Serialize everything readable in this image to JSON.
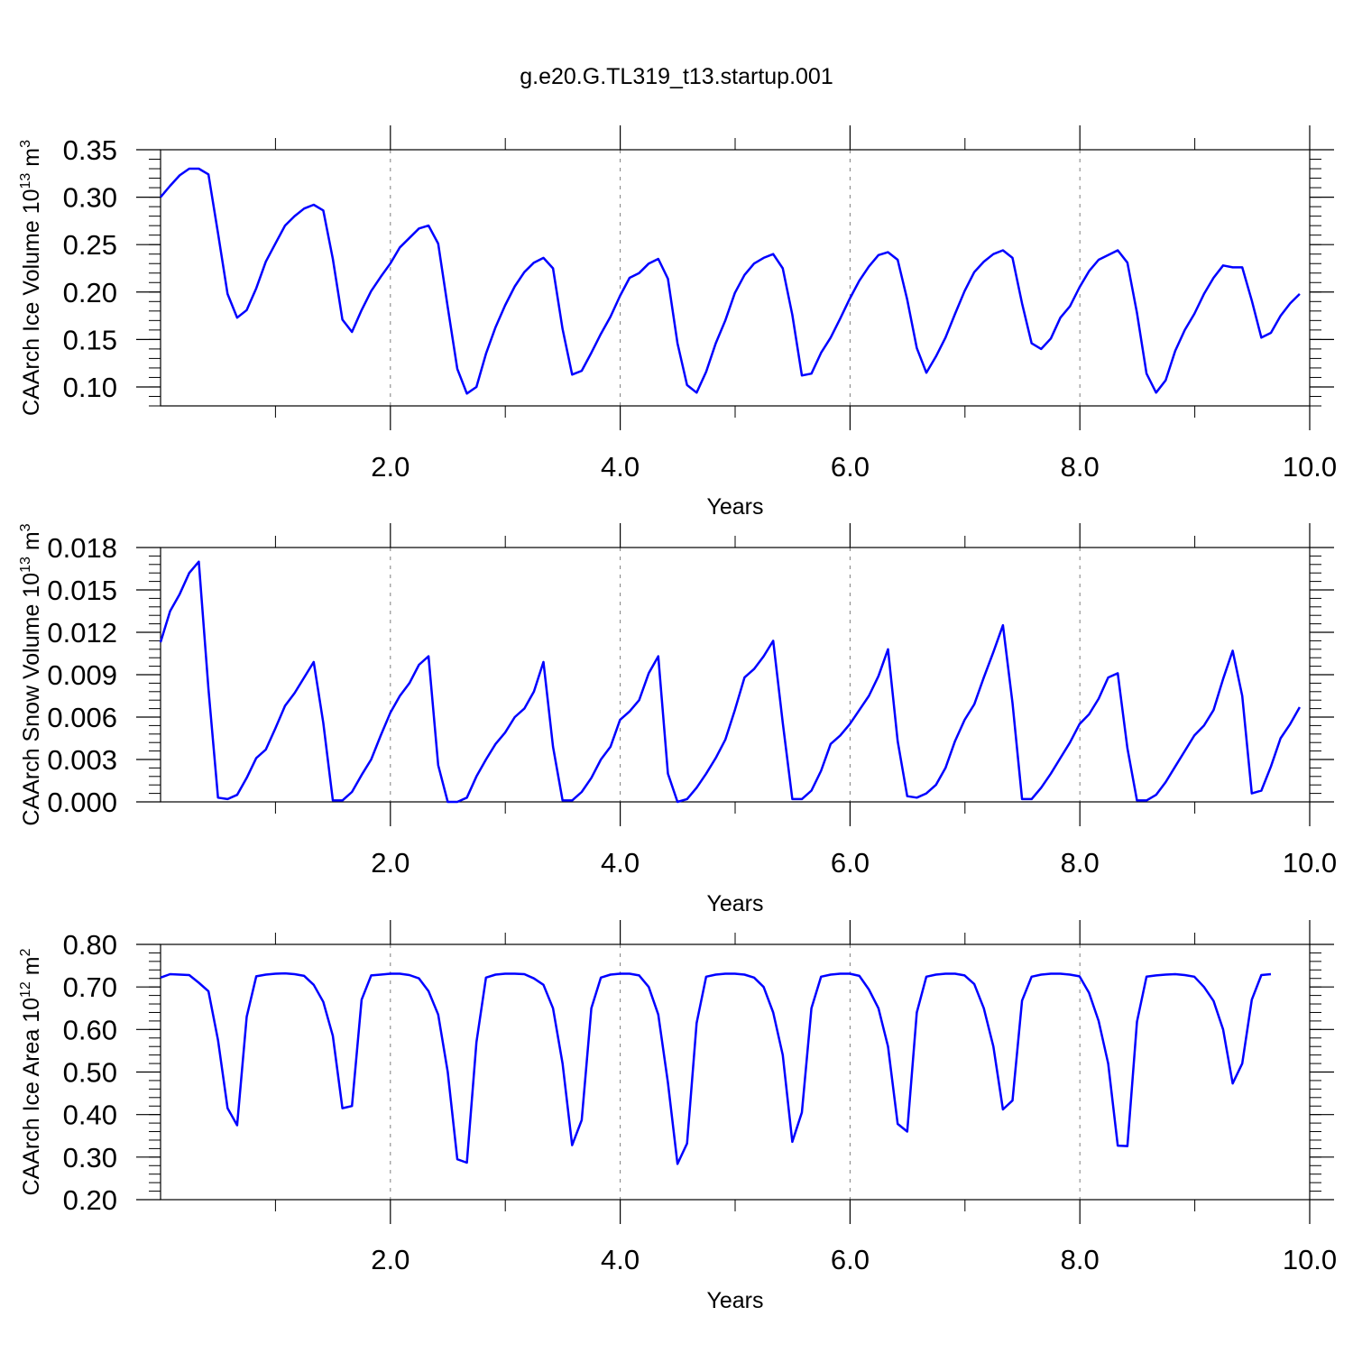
{
  "title": "g.e20.G.TL319_t13.startup.001",
  "colors": {
    "line": "#0000ff",
    "axis": "#000000",
    "grid": "#7f7f7f"
  },
  "chart_data": [
    {
      "type": "line",
      "ylabel": "CAArch Ice Volume 10",
      "ylabel_exp": "13",
      "ylabel_unit": " m",
      "ylabel_unit_exp": "3",
      "xlabel": "Years",
      "xlim": [
        0.0,
        10.0
      ],
      "ylim": [
        0.08,
        0.35
      ],
      "xticks": [
        2.0,
        4.0,
        6.0,
        8.0,
        10.0
      ],
      "xtick_labels": [
        "2.0",
        "4.0",
        "6.0",
        "8.0",
        "10.0"
      ],
      "yticks": [
        0.1,
        0.15,
        0.2,
        0.25,
        0.3,
        0.35
      ],
      "ytick_labels": [
        "0.10",
        "0.15",
        "0.20",
        "0.25",
        "0.30",
        "0.35"
      ],
      "vgrid": [
        2.0,
        4.0,
        6.0,
        8.0
      ],
      "x_start": 0.0,
      "x_step": 0.0833,
      "values": [
        0.3,
        0.312,
        0.323,
        0.33,
        0.33,
        0.324,
        0.262,
        0.198,
        0.173,
        0.181,
        0.204,
        0.232,
        0.251,
        0.27,
        0.28,
        0.288,
        0.292,
        0.286,
        0.235,
        0.171,
        0.158,
        0.181,
        0.201,
        0.216,
        0.23,
        0.247,
        0.257,
        0.267,
        0.27,
        0.251,
        0.184,
        0.119,
        0.093,
        0.1,
        0.135,
        0.163,
        0.186,
        0.206,
        0.221,
        0.231,
        0.236,
        0.225,
        0.161,
        0.113,
        0.117,
        0.136,
        0.156,
        0.174,
        0.196,
        0.215,
        0.22,
        0.23,
        0.235,
        0.214,
        0.146,
        0.102,
        0.094,
        0.116,
        0.146,
        0.17,
        0.199,
        0.218,
        0.23,
        0.236,
        0.24,
        0.225,
        0.176,
        0.112,
        0.114,
        0.136,
        0.152,
        0.172,
        0.193,
        0.212,
        0.227,
        0.239,
        0.242,
        0.234,
        0.192,
        0.141,
        0.115,
        0.132,
        0.152,
        0.177,
        0.201,
        0.221,
        0.232,
        0.24,
        0.244,
        0.236,
        0.188,
        0.146,
        0.14,
        0.151,
        0.173,
        0.185,
        0.205,
        0.222,
        0.234,
        0.239,
        0.244,
        0.231,
        0.178,
        0.114,
        0.094,
        0.107,
        0.138,
        0.16,
        0.177,
        0.198,
        0.215,
        0.228,
        0.226,
        0.226,
        0.191,
        0.152,
        0.157,
        0.175,
        0.188,
        0.198
      ]
    },
    {
      "type": "line",
      "ylabel": "CAArch Snow Volume 10",
      "ylabel_exp": "13",
      "ylabel_unit": " m",
      "ylabel_unit_exp": "3",
      "xlabel": "Years",
      "xlim": [
        0.0,
        10.0
      ],
      "ylim": [
        0.0,
        0.018
      ],
      "xticks": [
        2.0,
        4.0,
        6.0,
        8.0,
        10.0
      ],
      "xtick_labels": [
        "2.0",
        "4.0",
        "6.0",
        "8.0",
        "10.0"
      ],
      "yticks": [
        0.0,
        0.003,
        0.006,
        0.009,
        0.012,
        0.015,
        0.018
      ],
      "ytick_labels": [
        "0.000",
        "0.003",
        "0.006",
        "0.009",
        "0.012",
        "0.015",
        "0.018"
      ],
      "vgrid": [
        2.0,
        4.0,
        6.0,
        8.0
      ],
      "x_start": 0.0,
      "x_step": 0.0833,
      "values": [
        0.0113,
        0.0135,
        0.0147,
        0.0162,
        0.017,
        0.008,
        0.0003,
        0.0002,
        0.0005,
        0.0017,
        0.0031,
        0.0037,
        0.0052,
        0.0068,
        0.0077,
        0.0088,
        0.0099,
        0.0056,
        0.0001,
        0.0001,
        0.0007,
        0.0019,
        0.003,
        0.0047,
        0.0063,
        0.0075,
        0.0084,
        0.0097,
        0.0103,
        0.0026,
        0.0,
        0.0,
        0.0003,
        0.0018,
        0.003,
        0.0041,
        0.0049,
        0.006,
        0.0066,
        0.0078,
        0.0099,
        0.0039,
        0.0001,
        0.0001,
        0.0007,
        0.0017,
        0.003,
        0.0039,
        0.0058,
        0.0064,
        0.0072,
        0.0091,
        0.0103,
        0.002,
        0.0,
        0.0002,
        0.001,
        0.002,
        0.0031,
        0.0044,
        0.0065,
        0.0088,
        0.0094,
        0.0103,
        0.0114,
        0.0056,
        0.0002,
        0.0002,
        0.0008,
        0.0022,
        0.0041,
        0.0047,
        0.0055,
        0.0065,
        0.0075,
        0.0089,
        0.0108,
        0.0043,
        0.0004,
        0.0003,
        0.0006,
        0.0012,
        0.0024,
        0.0043,
        0.0058,
        0.0069,
        0.0088,
        0.0106,
        0.0125,
        0.007,
        0.0002,
        0.0002,
        0.001,
        0.002,
        0.0031,
        0.0042,
        0.0055,
        0.0062,
        0.0073,
        0.0088,
        0.0091,
        0.0038,
        0.0001,
        0.0001,
        0.0005,
        0.0014,
        0.0025,
        0.0036,
        0.0047,
        0.0054,
        0.0065,
        0.0087,
        0.0107,
        0.0075,
        0.0006,
        0.0008,
        0.0025,
        0.0045,
        0.0055,
        0.0067
      ]
    },
    {
      "type": "line",
      "ylabel": "CAArch Ice Area 10",
      "ylabel_exp": "12",
      "ylabel_unit": " m",
      "ylabel_unit_exp": "2",
      "xlabel": "Years",
      "xlim": [
        0.0,
        10.0
      ],
      "ylim": [
        0.2,
        0.8
      ],
      "xticks": [
        2.0,
        4.0,
        6.0,
        8.0,
        10.0
      ],
      "xtick_labels": [
        "2.0",
        "4.0",
        "6.0",
        "8.0",
        "10.0"
      ],
      "yticks": [
        0.2,
        0.3,
        0.4,
        0.5,
        0.6,
        0.7,
        0.8
      ],
      "ytick_labels": [
        "0.20",
        "0.30",
        "0.40",
        "0.50",
        "0.60",
        "0.70",
        "0.80"
      ],
      "vgrid": [
        2.0,
        4.0,
        6.0,
        8.0
      ],
      "x_start": 0.0,
      "x_step": 0.0833,
      "values": [
        0.722,
        0.73,
        0.729,
        0.728,
        0.71,
        0.69,
        0.575,
        0.415,
        0.375,
        0.63,
        0.725,
        0.729,
        0.731,
        0.732,
        0.73,
        0.726,
        0.705,
        0.665,
        0.585,
        0.415,
        0.42,
        0.67,
        0.727,
        0.729,
        0.731,
        0.731,
        0.728,
        0.72,
        0.69,
        0.635,
        0.5,
        0.295,
        0.287,
        0.57,
        0.722,
        0.729,
        0.731,
        0.731,
        0.73,
        0.72,
        0.705,
        0.65,
        0.52,
        0.328,
        0.387,
        0.65,
        0.722,
        0.729,
        0.731,
        0.731,
        0.727,
        0.7,
        0.635,
        0.475,
        0.284,
        0.332,
        0.615,
        0.724,
        0.729,
        0.731,
        0.731,
        0.729,
        0.722,
        0.7,
        0.64,
        0.54,
        0.336,
        0.405,
        0.65,
        0.724,
        0.729,
        0.731,
        0.731,
        0.726,
        0.694,
        0.65,
        0.56,
        0.378,
        0.36,
        0.64,
        0.724,
        0.729,
        0.731,
        0.731,
        0.727,
        0.707,
        0.65,
        0.56,
        0.412,
        0.433,
        0.668,
        0.724,
        0.729,
        0.731,
        0.731,
        0.729,
        0.725,
        0.686,
        0.62,
        0.52,
        0.327,
        0.326,
        0.618,
        0.724,
        0.727,
        0.729,
        0.73,
        0.728,
        0.724,
        0.7,
        0.667,
        0.6,
        0.473,
        0.52,
        0.67,
        0.728,
        0.73
      ]
    }
  ]
}
